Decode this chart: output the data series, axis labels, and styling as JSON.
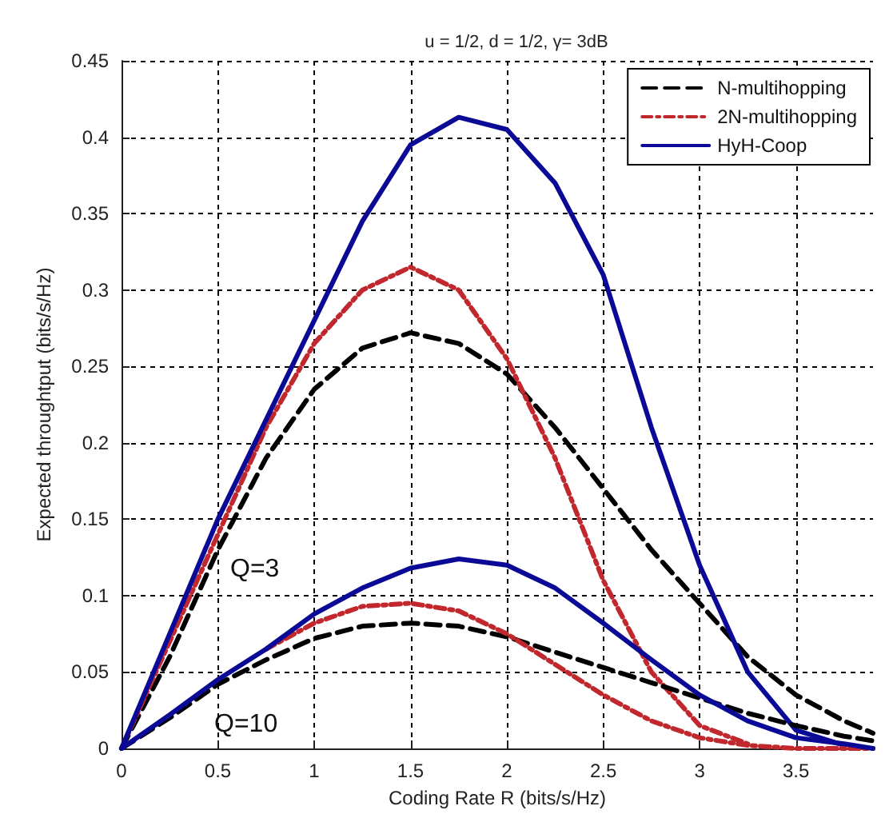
{
  "chart_data": {
    "type": "line",
    "title": "u = 1/2, d = 1/2, γ= 3dB",
    "xlabel": "Coding Rate R (bits/s/Hz)",
    "ylabel": "Expected throughtput (bits/s/Hz)",
    "x": [
      0,
      0.25,
      0.5,
      0.75,
      1,
      1.25,
      1.5,
      1.75,
      2,
      2.25,
      2.5,
      2.75,
      3,
      3.25,
      3.5,
      3.75,
      3.9
    ],
    "series": [
      {
        "name": "N-multihopping",
        "color": "#000000",
        "line_style": "dashed",
        "values": [
          0,
          0.06,
          0.13,
          0.19,
          0.235,
          0.262,
          0.272,
          0.265,
          0.245,
          0.21,
          0.17,
          0.13,
          0.095,
          0.06,
          0.035,
          0.018,
          0.01
        ]
      },
      {
        "name": "2N-multihopping",
        "color": "#c0282d",
        "line_style": "dashdot",
        "values": [
          0,
          0.07,
          0.14,
          0.21,
          0.265,
          0.3,
          0.315,
          0.3,
          0.255,
          0.19,
          0.11,
          0.05,
          0.015,
          0.003,
          null,
          null,
          null
        ]
      },
      {
        "name": "HyH-Coop",
        "color": "#0a0a96",
        "line_style": "solid",
        "values": [
          0,
          0.075,
          0.15,
          0.215,
          0.28,
          0.345,
          0.395,
          0.413,
          0.405,
          0.37,
          0.31,
          0.21,
          0.12,
          0.05,
          0.012,
          0.002,
          null
        ]
      },
      {
        "color": "#000000",
        "line_style": "dashed",
        "values": [
          0,
          0.02,
          0.042,
          0.058,
          0.072,
          0.08,
          0.082,
          0.08,
          0.073,
          0.063,
          0.053,
          0.043,
          0.033,
          0.023,
          0.015,
          0.008,
          0.005
        ]
      },
      {
        "color": "#c0282d",
        "line_style": "dashdot",
        "values": [
          null,
          null,
          null,
          0.065,
          0.082,
          0.093,
          0.095,
          0.09,
          0.075,
          0.055,
          0.035,
          0.018,
          0.007,
          0.002,
          0,
          0,
          0
        ]
      },
      {
        "color": "#0a0a96",
        "line_style": "solid",
        "values": [
          0,
          0.022,
          0.045,
          0.065,
          0.088,
          0.105,
          0.118,
          0.124,
          0.12,
          0.105,
          0.082,
          0.058,
          0.035,
          0.018,
          0.007,
          0.003,
          0
        ]
      }
    ],
    "annotations": [
      "Q=3",
      "Q=10"
    ],
    "xlim": [
      0,
      3.9
    ],
    "xticks": [
      0,
      0.5,
      1,
      1.5,
      2,
      2.5,
      3,
      3.5
    ],
    "ylim": [
      0,
      0.45
    ],
    "yticks": [
      0,
      0.05,
      0.1,
      0.15,
      0.2,
      0.25,
      0.3,
      0.35,
      0.4,
      0.45
    ],
    "grid": true,
    "legend": "top right",
    "marker": "none"
  }
}
